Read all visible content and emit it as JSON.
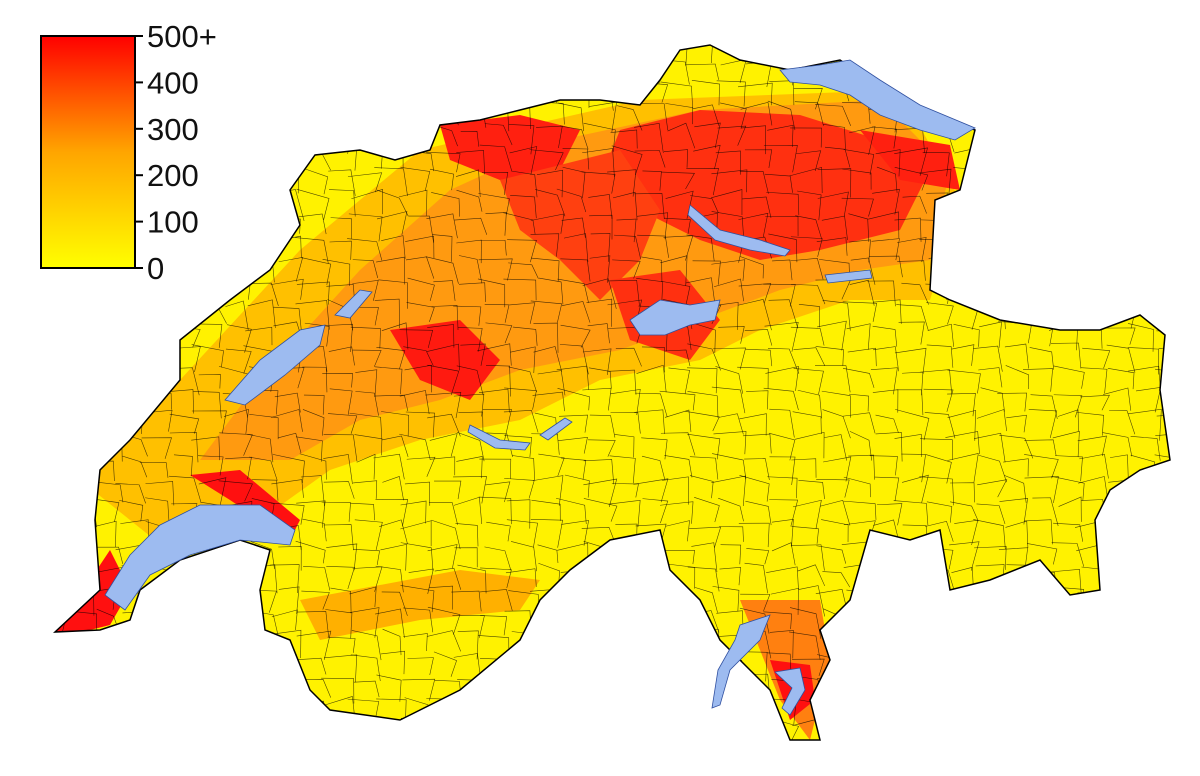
{
  "legend": {
    "ticks": [
      {
        "value": 0,
        "label": "0"
      },
      {
        "value": 100,
        "label": "100"
      },
      {
        "value": 200,
        "label": "200"
      },
      {
        "value": 300,
        "label": "300"
      },
      {
        "value": 400,
        "label": "400"
      },
      {
        "value": 500,
        "label": "500+"
      }
    ],
    "range": [
      0,
      500
    ],
    "color_low": "#ffff00",
    "color_mid": "#ffa500",
    "color_high": "#ff0000"
  },
  "colors": {
    "lake": "#9dbbf0",
    "border": "#000000",
    "low": "#fff200",
    "low_mid": "#ffd000",
    "mid": "#ffa010",
    "high_mid": "#ff6010",
    "high": "#ff1010"
  }
}
